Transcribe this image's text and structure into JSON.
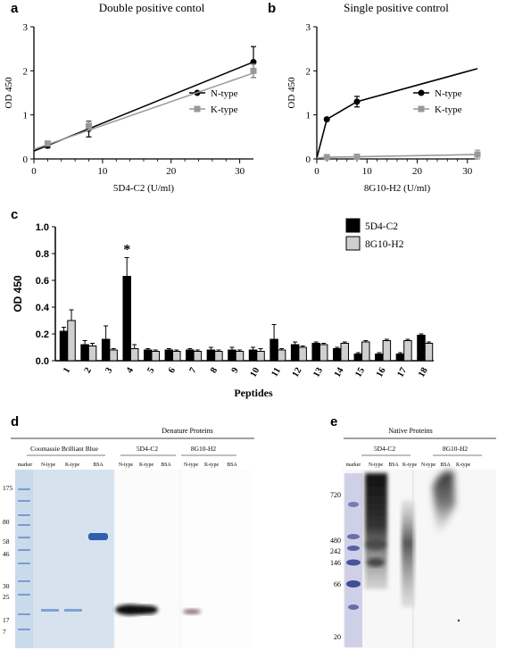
{
  "panels": {
    "a": {
      "letter": "a",
      "title": "Double positive contol"
    },
    "b": {
      "letter": "b",
      "title": "Single positive control"
    },
    "c": {
      "letter": "c"
    },
    "d": {
      "letter": "d",
      "title": "Denature Proteins",
      "groups": [
        "Coomassie Brilliant Blue",
        "5D4-C2",
        "8G10-H2"
      ],
      "lanes": [
        "marker",
        "N-type",
        "K-type",
        "BSA",
        "N-type",
        "K-type",
        "BSA",
        "N-type",
        "K-type",
        "BSA"
      ],
      "markers": [
        "175",
        "80",
        "58",
        "46",
        "30",
        "25",
        "17",
        "7"
      ]
    },
    "e": {
      "letter": "e",
      "title": "Native Proteins",
      "groups": [
        "5D4-C2",
        "8G10-H2"
      ],
      "lanes": [
        "marker",
        "N-type",
        "BSA",
        "K-type",
        "N-type",
        "BSA",
        "K-type"
      ],
      "markers": [
        "720",
        "480",
        "242",
        "146",
        "66",
        "20"
      ]
    }
  },
  "chart_data": [
    {
      "type": "line",
      "panel": "a",
      "title": "Double positive contol",
      "xlabel": "5D4-C2 (U/ml)",
      "ylabel": "OD 450",
      "xlim": [
        0,
        32
      ],
      "ylim": [
        0,
        3
      ],
      "xticks": [
        0,
        10,
        20,
        30
      ],
      "yticks": [
        0,
        1,
        2,
        3
      ],
      "x_minor_ticks": [
        2,
        4,
        6,
        8,
        12,
        14,
        16,
        18,
        22,
        24,
        26,
        28
      ],
      "legend": "right",
      "fit": "linear",
      "series": [
        {
          "name": "N-type",
          "color": "#000000",
          "marker": "circle",
          "x": [
            2,
            8,
            32
          ],
          "y": [
            0.3,
            0.68,
            2.2
          ],
          "err": [
            0.05,
            0.18,
            0.35
          ],
          "fit_line": [
            0.18,
            2.2
          ]
        },
        {
          "name": "K-type",
          "color": "#999999",
          "marker": "square",
          "x": [
            2,
            8,
            32
          ],
          "y": [
            0.35,
            0.75,
            2.0
          ],
          "err": [
            0.05,
            0.1,
            0.15
          ],
          "fit_line": [
            0.22,
            1.95
          ]
        }
      ]
    },
    {
      "type": "line",
      "panel": "b",
      "title": "Single positive control",
      "xlabel": "8G10-H2 (U/ml)",
      "ylabel": "OD 450",
      "xlim": [
        0,
        32
      ],
      "ylim": [
        0,
        3
      ],
      "xticks": [
        0,
        10,
        20,
        30
      ],
      "yticks": [
        0,
        1,
        2,
        3
      ],
      "x_minor_ticks": [
        2,
        4,
        6,
        8,
        12,
        14,
        16,
        18,
        22,
        24,
        26,
        28
      ],
      "legend": "right",
      "series": [
        {
          "name": "N-type",
          "color": "#000000",
          "marker": "circle",
          "x": [
            0,
            2,
            8,
            32
          ],
          "y": [
            0.02,
            0.9,
            1.3,
            2.05
          ],
          "err": [
            0,
            0.03,
            0.12,
            0
          ],
          "markers_at": [
            2,
            8
          ]
        },
        {
          "name": "K-type",
          "color": "#999999",
          "marker": "square",
          "x": [
            0,
            2,
            8,
            32
          ],
          "y": [
            0.02,
            0.04,
            0.05,
            0.1
          ],
          "err": [
            0,
            0.02,
            0.02,
            0.1
          ],
          "markers_at": [
            2,
            8,
            32
          ]
        }
      ]
    },
    {
      "type": "bar",
      "panel": "c",
      "xlabel": "Peptides",
      "ylabel": "OD 450",
      "ylim": [
        0,
        1.0
      ],
      "yticks": [
        "0.0",
        "0.2",
        "0.4",
        "0.6",
        "0.8",
        "1.0"
      ],
      "categories": [
        "1",
        "2",
        "3",
        "4",
        "5",
        "6",
        "7",
        "8",
        "9",
        "10",
        "11",
        "12",
        "13",
        "14",
        "15",
        "16",
        "17",
        "18"
      ],
      "legend": "top-right",
      "annotation": {
        "text": "*",
        "category": "4"
      },
      "series": [
        {
          "name": "5D4-C2",
          "color": "#000000",
          "values": [
            0.22,
            0.12,
            0.16,
            0.63,
            0.08,
            0.08,
            0.08,
            0.08,
            0.08,
            0.08,
            0.16,
            0.12,
            0.13,
            0.09,
            0.05,
            0.05,
            0.05,
            0.19
          ],
          "err": [
            0.03,
            0.03,
            0.1,
            0.14,
            0.01,
            0.01,
            0.01,
            0.02,
            0.02,
            0.02,
            0.11,
            0.02,
            0.01,
            0.01,
            0.01,
            0.01,
            0.01,
            0.01
          ]
        },
        {
          "name": "8G10-H2",
          "color": "#cfcfcf",
          "values": [
            0.3,
            0.11,
            0.08,
            0.09,
            0.07,
            0.07,
            0.07,
            0.07,
            0.07,
            0.07,
            0.08,
            0.1,
            0.12,
            0.13,
            0.14,
            0.15,
            0.15,
            0.13
          ],
          "err": [
            0.08,
            0.02,
            0.01,
            0.03,
            0.01,
            0.01,
            0.01,
            0.01,
            0.01,
            0.02,
            0.01,
            0.01,
            0.01,
            0.01,
            0.01,
            0.01,
            0.01,
            0.01
          ]
        }
      ]
    }
  ]
}
